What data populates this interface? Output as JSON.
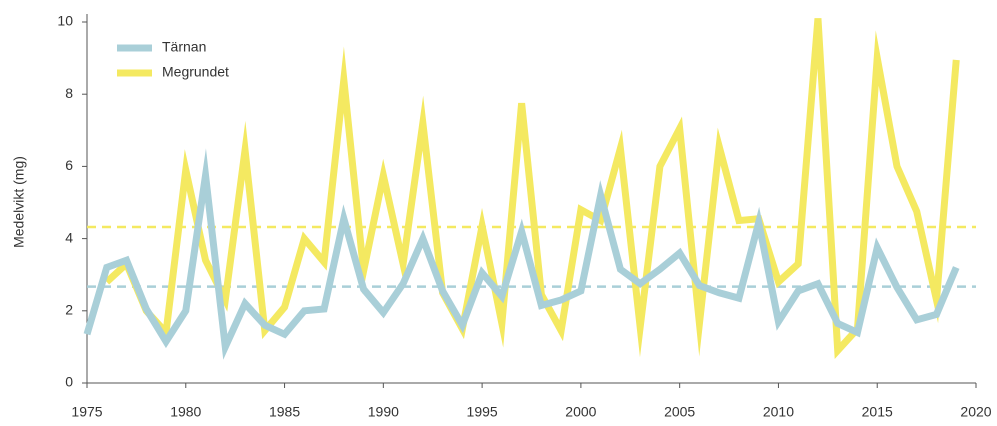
{
  "chart_data": {
    "type": "line",
    "y_label": "Medelvikt (mg)",
    "x": [
      1975,
      1976,
      1977,
      1978,
      1979,
      1980,
      1981,
      1982,
      1983,
      1984,
      1985,
      1986,
      1987,
      1988,
      1989,
      1990,
      1991,
      1992,
      1993,
      1994,
      1995,
      1996,
      1997,
      1998,
      1999,
      2000,
      2001,
      2002,
      2003,
      2004,
      2005,
      2006,
      2007,
      2008,
      2009,
      2010,
      2011,
      2012,
      2013,
      2014,
      2015,
      2016,
      2017,
      2018,
      2019
    ],
    "series": [
      {
        "name": "Megrundet",
        "color": "#f4e961",
        "values": [
          null,
          2.8,
          3.3,
          2.0,
          1.4,
          5.9,
          3.4,
          2.3,
          6.45,
          1.45,
          2.1,
          4.0,
          3.35,
          8.4,
          3.1,
          5.75,
          3.3,
          7.2,
          2.5,
          1.5,
          4.35,
          1.65,
          7.75,
          2.45,
          1.45,
          4.8,
          4.5,
          6.5,
          1.55,
          6.0,
          7.05,
          1.65,
          6.55,
          4.5,
          4.55,
          2.8,
          3.3,
          10.1,
          0.9,
          1.5,
          9.0,
          6.0,
          4.75,
          2.3,
          8.95
        ]
      },
      {
        "name": "Tärnan",
        "color": "#a9cfd8",
        "values": [
          1.35,
          3.2,
          3.4,
          2.05,
          1.15,
          2.0,
          5.75,
          1.0,
          2.2,
          1.6,
          1.35,
          2.0,
          2.05,
          4.55,
          2.6,
          1.95,
          2.75,
          4.0,
          2.55,
          1.6,
          3.05,
          2.4,
          4.2,
          2.15,
          2.3,
          2.55,
          5.2,
          3.15,
          2.75,
          3.15,
          3.6,
          2.7,
          2.5,
          2.35,
          4.45,
          1.7,
          2.55,
          2.75,
          1.65,
          1.4,
          3.75,
          2.65,
          1.75,
          1.9,
          3.2
        ]
      }
    ],
    "reference_lines": [
      {
        "value": 4.32,
        "color": "#f4e961"
      },
      {
        "value": 2.67,
        "color": "#a9cfd8"
      }
    ],
    "legend_order": [
      1,
      0
    ],
    "xlim": [
      1975,
      2020
    ],
    "xticks": [
      1975,
      1980,
      1985,
      1990,
      1995,
      2000,
      2005,
      2010,
      2015,
      2020
    ],
    "ylim": [
      0,
      10
    ],
    "yticks": [
      0,
      2,
      4,
      6,
      8,
      10
    ],
    "legend": "upper left"
  }
}
